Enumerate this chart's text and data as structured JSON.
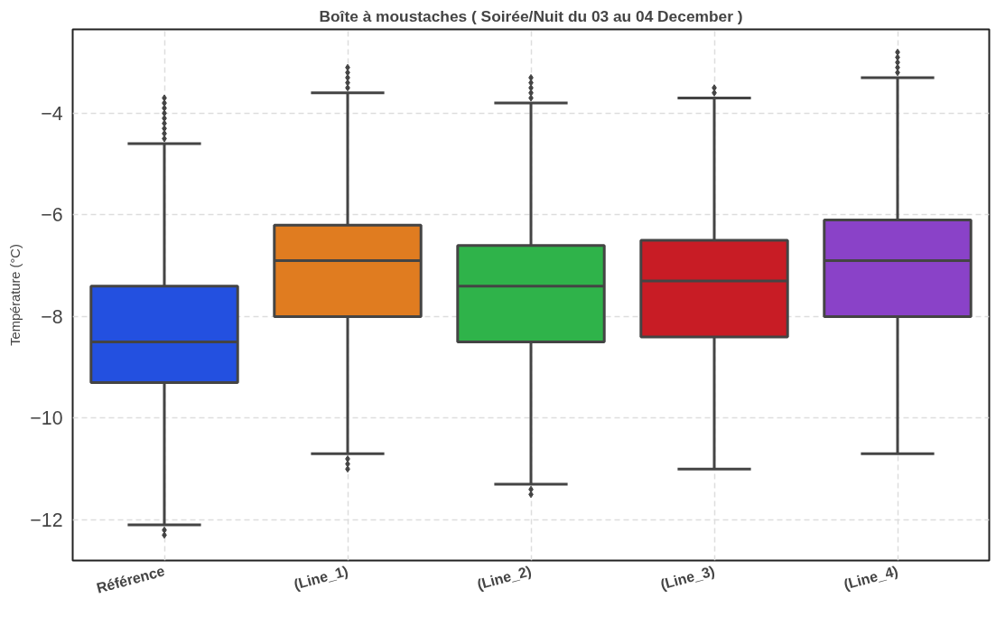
{
  "chart_data": {
    "type": "box",
    "title": "Boîte à moustaches ( Soirée/Nuit du 03 au 04 December )",
    "ylabel": "Température (°C)",
    "categories": [
      "Référence",
      "(Line_1)",
      "(Line_2)",
      "(Line_3)",
      "(Line_4)"
    ],
    "colors": [
      "#2350e0",
      "#e07c20",
      "#2fb34a",
      "#c81c25",
      "#8a42c8"
    ],
    "boxes": [
      {
        "low": -12.1,
        "q1": -9.3,
        "median": -8.5,
        "q3": -7.4,
        "high": -4.6,
        "outliers": [
          -4.5,
          -4.4,
          -4.3,
          -4.2,
          -4.1,
          -4.0,
          -3.9,
          -3.8,
          -3.7,
          -12.2,
          -12.3
        ]
      },
      {
        "low": -10.7,
        "q1": -8.0,
        "median": -6.9,
        "q3": -6.2,
        "high": -3.6,
        "outliers": [
          -3.5,
          -3.4,
          -3.3,
          -3.2,
          -3.1,
          -10.8,
          -10.9,
          -11.0
        ]
      },
      {
        "low": -11.3,
        "q1": -8.5,
        "median": -7.4,
        "q3": -6.6,
        "high": -3.8,
        "outliers": [
          -3.7,
          -3.6,
          -3.5,
          -3.4,
          -3.3,
          -11.4,
          -11.5
        ]
      },
      {
        "low": -11.0,
        "q1": -8.4,
        "median": -7.3,
        "q3": -6.5,
        "high": -3.7,
        "outliers": [
          -3.6,
          -3.5
        ]
      },
      {
        "low": -10.7,
        "q1": -8.0,
        "median": -6.9,
        "q3": -6.1,
        "high": -3.3,
        "outliers": [
          -3.2,
          -3.1,
          -3.0,
          -2.9,
          -2.8
        ]
      }
    ],
    "ylim": [
      -12.8,
      -2.35
    ],
    "yticks": [
      -12,
      -10,
      -8,
      -6,
      -4
    ],
    "grid": true,
    "marker": "diamond"
  }
}
